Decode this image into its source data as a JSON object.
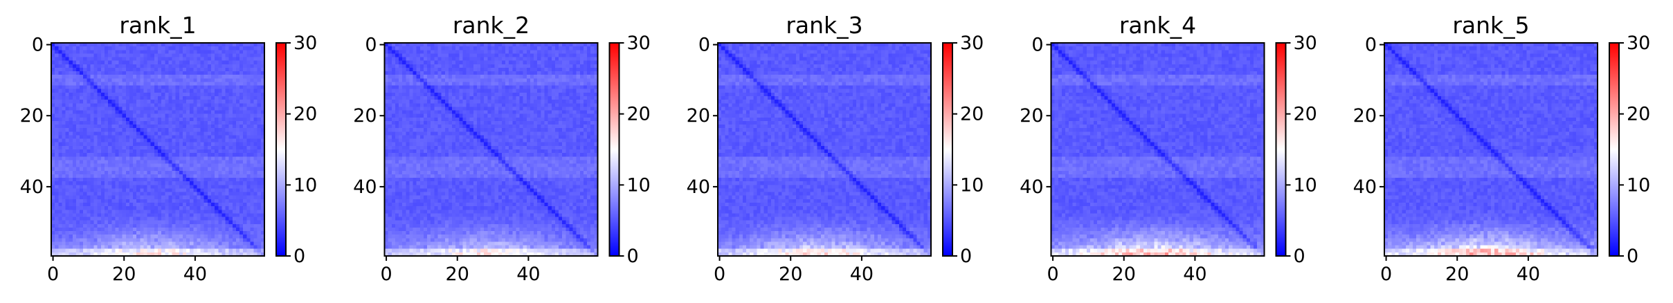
{
  "chart_data": [
    {
      "type": "heatmap",
      "title": "rank_1",
      "matrix_size": 60,
      "xticks": [
        0,
        20,
        40
      ],
      "yticks": [
        0,
        20,
        40
      ],
      "colorbar": {
        "min": 0,
        "max": 30,
        "ticks": [
          0,
          10,
          20,
          30
        ],
        "colormap": "bwr"
      },
      "pattern": {
        "base": 4.5,
        "diagonal": 2.0,
        "bottom_rows_max": 13,
        "bands_at_rows": [
          10,
          33,
          36
        ]
      }
    },
    {
      "type": "heatmap",
      "title": "rank_2",
      "matrix_size": 60,
      "xticks": [
        0,
        20,
        40
      ],
      "yticks": [
        0,
        20,
        40
      ],
      "colorbar": {
        "min": 0,
        "max": 30,
        "ticks": [
          0,
          10,
          20,
          30
        ],
        "colormap": "bwr"
      },
      "pattern": {
        "base": 4.5,
        "diagonal": 2.0,
        "bottom_rows_max": 13,
        "bands_at_rows": [
          10,
          33,
          36
        ]
      }
    },
    {
      "type": "heatmap",
      "title": "rank_3",
      "matrix_size": 60,
      "xticks": [
        0,
        20,
        40
      ],
      "yticks": [
        0,
        20,
        40
      ],
      "colorbar": {
        "min": 0,
        "max": 30,
        "ticks": [
          0,
          10,
          20,
          30
        ],
        "colormap": "bwr"
      },
      "pattern": {
        "base": 4.5,
        "diagonal": 2.0,
        "bottom_rows_max": 14,
        "bands_at_rows": [
          10,
          33,
          36
        ]
      }
    },
    {
      "type": "heatmap",
      "title": "rank_4",
      "matrix_size": 60,
      "xticks": [
        0,
        20,
        40
      ],
      "yticks": [
        0,
        20,
        40
      ],
      "colorbar": {
        "min": 0,
        "max": 30,
        "ticks": [
          0,
          10,
          20,
          30
        ],
        "colormap": "bwr"
      },
      "pattern": {
        "base": 4.5,
        "diagonal": 2.0,
        "bottom_rows_max": 17,
        "bands_at_rows": [
          10,
          33,
          36
        ]
      }
    },
    {
      "type": "heatmap",
      "title": "rank_5",
      "matrix_size": 60,
      "xticks": [
        0,
        20,
        40
      ],
      "yticks": [
        0,
        20,
        40
      ],
      "colorbar": {
        "min": 0,
        "max": 30,
        "ticks": [
          0,
          10,
          20,
          30
        ],
        "colormap": "bwr"
      },
      "pattern": {
        "base": 4.5,
        "diagonal": 2.0,
        "bottom_rows_max": 17,
        "bands_at_rows": [
          10,
          33,
          36
        ]
      }
    }
  ]
}
